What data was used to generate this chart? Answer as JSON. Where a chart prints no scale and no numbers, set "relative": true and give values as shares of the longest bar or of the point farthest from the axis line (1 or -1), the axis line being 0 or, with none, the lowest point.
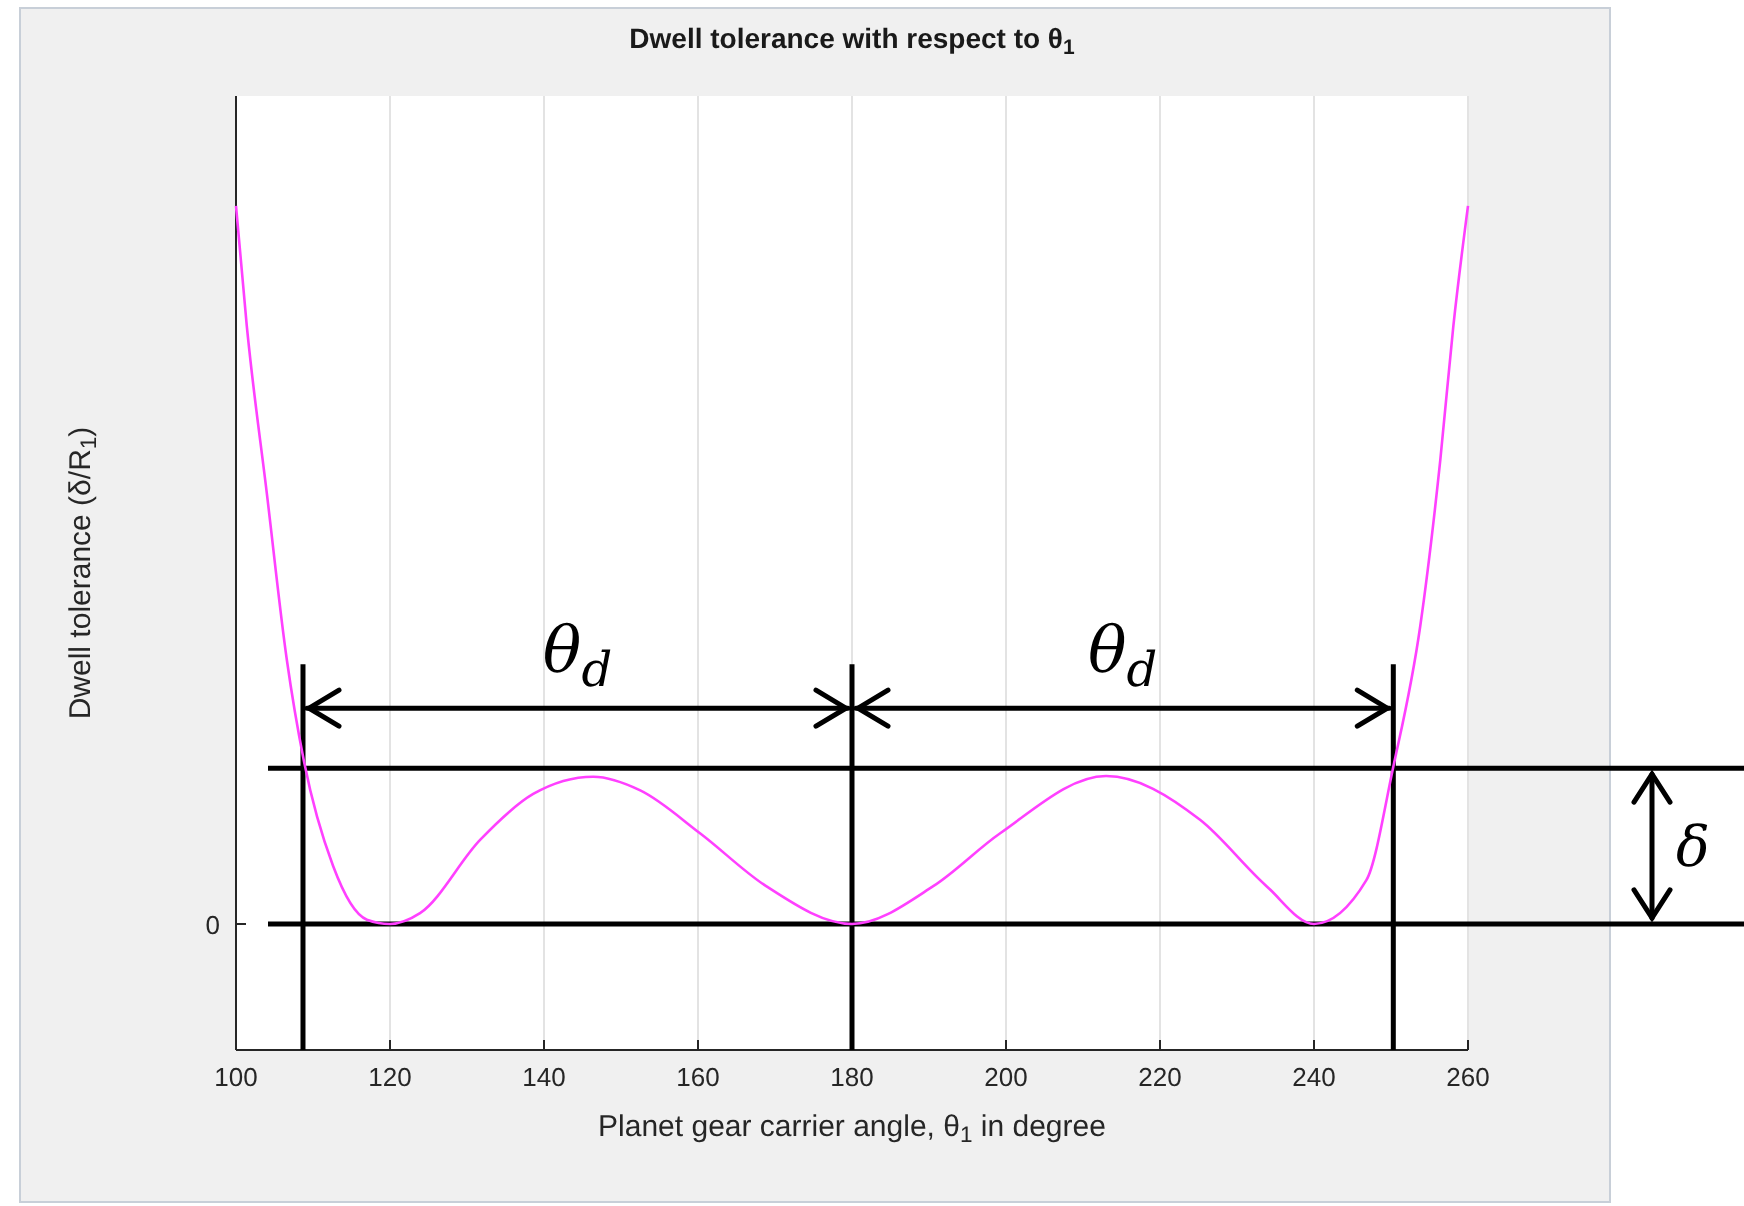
{
  "chart_data": {
    "type": "line",
    "title": "Dwell tolerance with respect to θ$_{1}$",
    "xlabel": "Planet gear carrier angle, θ$_{1}$ in degree",
    "ylabel": "Dwell tolerance (δ/R$_{1}$)",
    "relative": true,
    "x": [
      100,
      101.4,
      104,
      106.6,
      108.8,
      112.6,
      117,
      120,
      123.9,
      131.7,
      138.6,
      146.4,
      152.5,
      160.3,
      168.8,
      180,
      190.6,
      199.2,
      213,
      225.2,
      233.8,
      240,
      246.8,
      250.3,
      253.8,
      256.4,
      258.1,
      260
    ],
    "series": [
      {
        "color": "#ff40ff",
        "values": [
          1.0,
          0.833,
          0.6,
          0.368,
          0.228,
          0.081,
          0.006,
          0,
          0.015,
          0.117,
          0.181,
          0.205,
          0.186,
          0.126,
          0.053,
          0,
          0.053,
          0.126,
          0.206,
          0.145,
          0.053,
          0,
          0.061,
          0.219,
          0.415,
          0.646,
          0.833,
          1.0
        ]
      }
    ],
    "xlim": [
      100,
      260
    ],
    "xticks": [
      100,
      120,
      140,
      160,
      180,
      200,
      220,
      240,
      260
    ],
    "grid": "x",
    "marker": "none",
    "line_style": "solid",
    "ref_lines": [
      {
        "axis": "y",
        "value": 0,
        "label": "0",
        "color": "#000000"
      },
      {
        "axis": "y",
        "value": 0.217,
        "label": "δ",
        "color": "#000000"
      },
      {
        "axis": "x",
        "value": 108.7,
        "color": "#000000"
      },
      {
        "axis": "x",
        "value": 180,
        "color": "#000000"
      },
      {
        "axis": "x",
        "value": 250.3,
        "color": "#000000"
      }
    ],
    "annotations": [
      "θ$_{d}$",
      "θ$_{d}$"
    ]
  }
}
